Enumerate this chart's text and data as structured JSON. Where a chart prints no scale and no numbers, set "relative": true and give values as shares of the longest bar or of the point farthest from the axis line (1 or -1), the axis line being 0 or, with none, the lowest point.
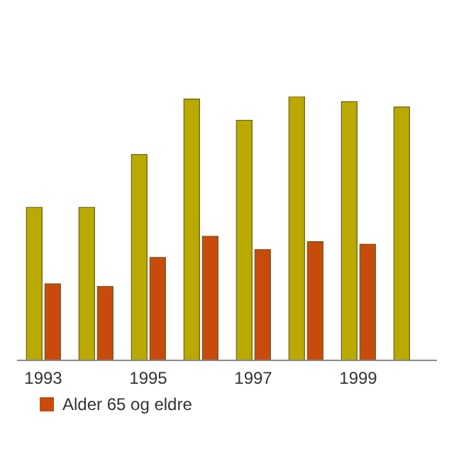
{
  "chart_data": {
    "type": "bar",
    "relative": true,
    "categories": [
      "1993",
      null,
      "1995",
      null,
      "1997",
      null,
      "1999",
      null
    ],
    "series": [
      {
        "color": "#b9a900",
        "values": [
          0.58,
          0.58,
          0.78,
          0.99,
          0.91,
          1,
          0.98,
          0.96
        ]
      },
      {
        "name": "Alder 65 og eldre",
        "color": "#c84b0c",
        "values": [
          0.29,
          0.28,
          0.39,
          0.47,
          0.42,
          0.45,
          0.44,
          null
        ]
      }
    ],
    "legend": "bottom left"
  }
}
